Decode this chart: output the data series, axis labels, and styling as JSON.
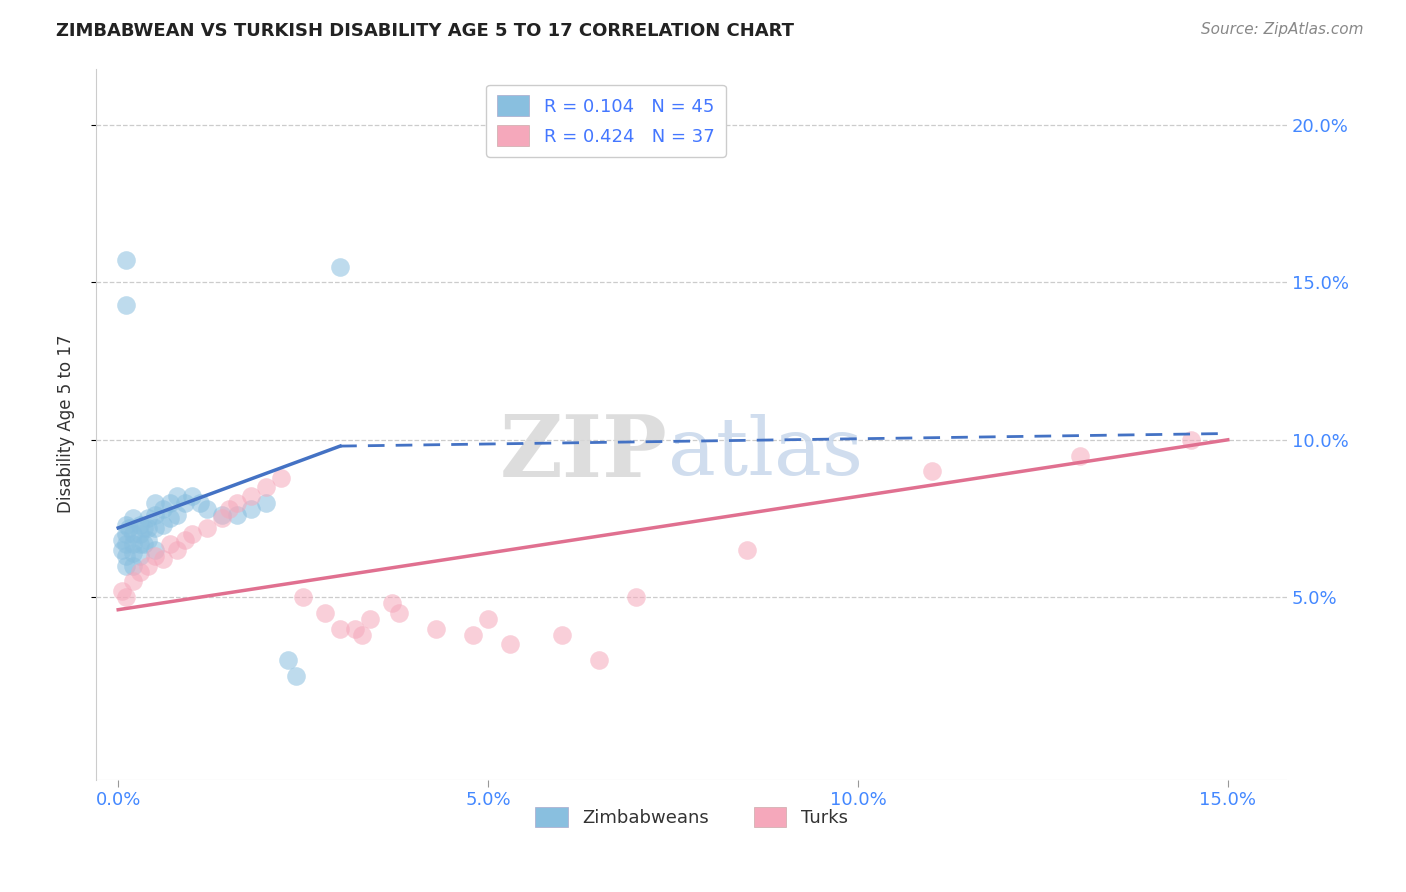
{
  "title": "ZIMBABWEAN VS TURKISH DISABILITY AGE 5 TO 17 CORRELATION CHART",
  "source": "Source: ZipAtlas.com",
  "ylabel": "Disability Age 5 to 17",
  "xlim": [
    -0.003,
    0.158
  ],
  "ylim": [
    -0.008,
    0.218
  ],
  "xticks": [
    0.0,
    0.05,
    0.1,
    0.15
  ],
  "xtick_labels": [
    "0.0%",
    "5.0%",
    "10.0%",
    "15.0%"
  ],
  "yticks": [
    0.05,
    0.1,
    0.15,
    0.2
  ],
  "ytick_labels": [
    "5.0%",
    "10.0%",
    "15.0%",
    "20.0%"
  ],
  "blue_scatter_color": "#89bfdf",
  "pink_scatter_color": "#f5a8bb",
  "blue_line_color": "#4472c4",
  "pink_line_color": "#e07090",
  "legend_text_color": "#4477ff",
  "R_zim": 0.104,
  "N_zim": 45,
  "R_turk": 0.424,
  "N_turk": 37,
  "zim_x": [
    0.0005,
    0.0005,
    0.001,
    0.001,
    0.001,
    0.001,
    0.001,
    0.0015,
    0.002,
    0.002,
    0.002,
    0.002,
    0.002,
    0.003,
    0.003,
    0.003,
    0.003,
    0.0035,
    0.0035,
    0.004,
    0.004,
    0.004,
    0.005,
    0.005,
    0.005,
    0.005,
    0.006,
    0.006,
    0.007,
    0.007,
    0.008,
    0.008,
    0.009,
    0.01,
    0.011,
    0.012,
    0.014,
    0.016,
    0.018,
    0.02,
    0.023,
    0.001,
    0.001,
    0.024,
    0.03
  ],
  "zim_y": [
    0.068,
    0.065,
    0.073,
    0.07,
    0.067,
    0.063,
    0.06,
    0.072,
    0.075,
    0.07,
    0.067,
    0.064,
    0.06,
    0.073,
    0.07,
    0.067,
    0.063,
    0.072,
    0.067,
    0.075,
    0.072,
    0.068,
    0.08,
    0.076,
    0.072,
    0.065,
    0.078,
    0.073,
    0.08,
    0.075,
    0.082,
    0.076,
    0.08,
    0.082,
    0.08,
    0.078,
    0.076,
    0.076,
    0.078,
    0.08,
    0.03,
    0.143,
    0.157,
    0.025,
    0.155
  ],
  "turk_x": [
    0.0005,
    0.001,
    0.002,
    0.003,
    0.004,
    0.005,
    0.006,
    0.007,
    0.008,
    0.009,
    0.01,
    0.012,
    0.014,
    0.015,
    0.016,
    0.018,
    0.02,
    0.022,
    0.025,
    0.028,
    0.03,
    0.032,
    0.033,
    0.034,
    0.037,
    0.038,
    0.043,
    0.048,
    0.05,
    0.053,
    0.06,
    0.065,
    0.07,
    0.085,
    0.11,
    0.13,
    0.145
  ],
  "turk_y": [
    0.052,
    0.05,
    0.055,
    0.058,
    0.06,
    0.063,
    0.062,
    0.067,
    0.065,
    0.068,
    0.07,
    0.072,
    0.075,
    0.078,
    0.08,
    0.082,
    0.085,
    0.088,
    0.05,
    0.045,
    0.04,
    0.04,
    0.038,
    0.043,
    0.048,
    0.045,
    0.04,
    0.038,
    0.043,
    0.035,
    0.038,
    0.03,
    0.05,
    0.065,
    0.09,
    0.095,
    0.1
  ],
  "watermark_zip": "ZIP",
  "watermark_atlas": "atlas",
  "background_color": "#ffffff",
  "grid_color": "#cccccc",
  "zim_line_solid_end": 0.03,
  "blue_line_start_y": 0.072,
  "blue_line_end_y": 0.098,
  "blue_line_dashed_end_y": 0.102,
  "pink_line_start_y": 0.046,
  "pink_line_end_y": 0.1
}
